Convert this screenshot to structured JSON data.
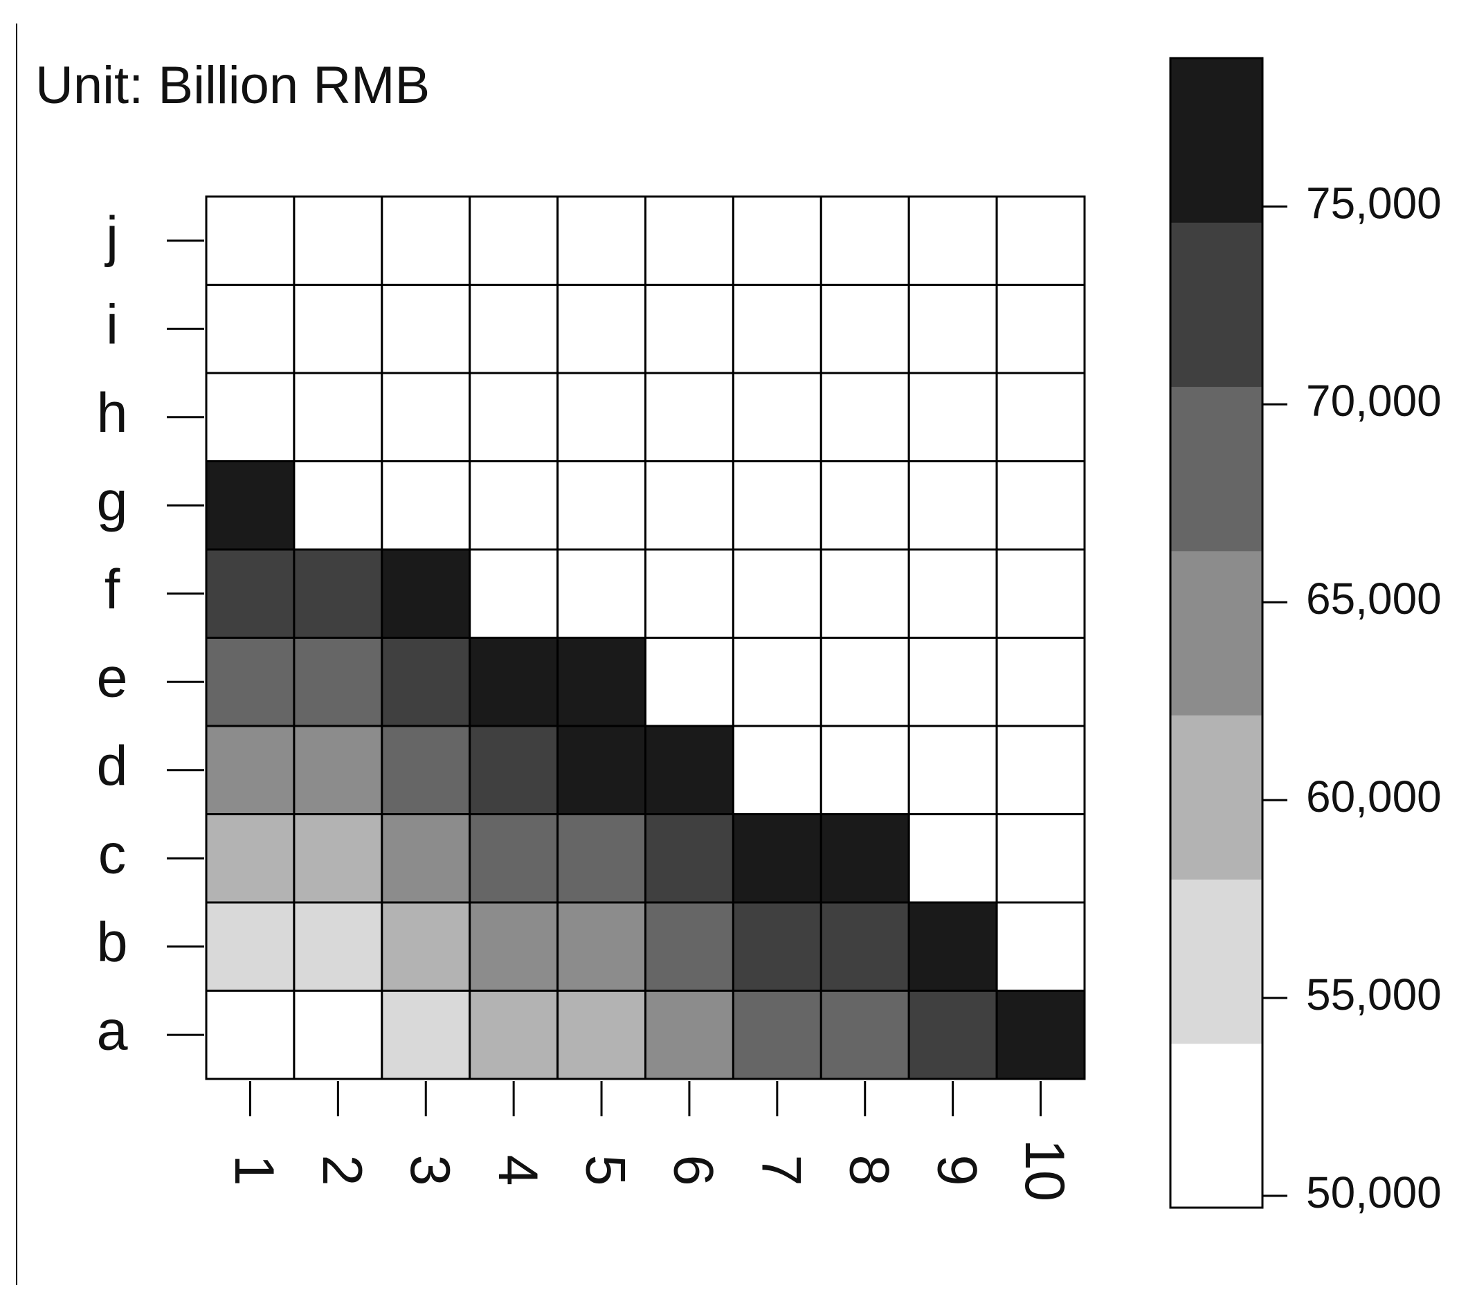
{
  "chart_data": {
    "type": "heatmap",
    "title": "Unit: Billion RMB",
    "x": [
      "1",
      "2",
      "3",
      "4",
      "5",
      "6",
      "7",
      "8",
      "9",
      "10"
    ],
    "y": [
      "a",
      "b",
      "c",
      "d",
      "e",
      "f",
      "g",
      "h",
      "i",
      "j"
    ],
    "values": [
      [
        52000,
        52000,
        56000,
        60000,
        60000,
        64000,
        68500,
        68500,
        72500,
        76500
      ],
      [
        56000,
        56000,
        60000,
        64000,
        64000,
        68500,
        72500,
        72500,
        76500,
        null
      ],
      [
        60000,
        60000,
        64000,
        68500,
        68500,
        72500,
        76500,
        76500,
        null,
        null
      ],
      [
        64000,
        64000,
        68500,
        72500,
        76500,
        76500,
        null,
        null,
        null,
        null
      ],
      [
        68500,
        68500,
        72500,
        76500,
        76500,
        null,
        null,
        null,
        null,
        null
      ],
      [
        72500,
        72500,
        76500,
        null,
        null,
        null,
        null,
        null,
        null,
        null
      ],
      [
        76500,
        null,
        null,
        null,
        null,
        null,
        null,
        null,
        null,
        null
      ],
      [
        null,
        null,
        null,
        null,
        null,
        null,
        null,
        null,
        null,
        null
      ],
      [
        null,
        null,
        null,
        null,
        null,
        null,
        null,
        null,
        null,
        null
      ],
      [
        null,
        null,
        null,
        null,
        null,
        null,
        null,
        null,
        null,
        null
      ]
    ],
    "colors": [
      "#ffffff",
      "#d9d9d9",
      "#b3b3b3",
      "#8c8c8c",
      "#666666",
      "#404040",
      "#1a1a1a"
    ],
    "zlim": [
      49700,
      78750
    ],
    "zticks": [
      {
        "value": 50000,
        "label": "50,000"
      },
      {
        "value": 55000,
        "label": "55,000"
      },
      {
        "value": 60000,
        "label": "60,000"
      },
      {
        "value": 65000,
        "label": "65,000"
      },
      {
        "value": 70000,
        "label": "70,000"
      },
      {
        "value": 75000,
        "label": "75,000"
      }
    ]
  }
}
